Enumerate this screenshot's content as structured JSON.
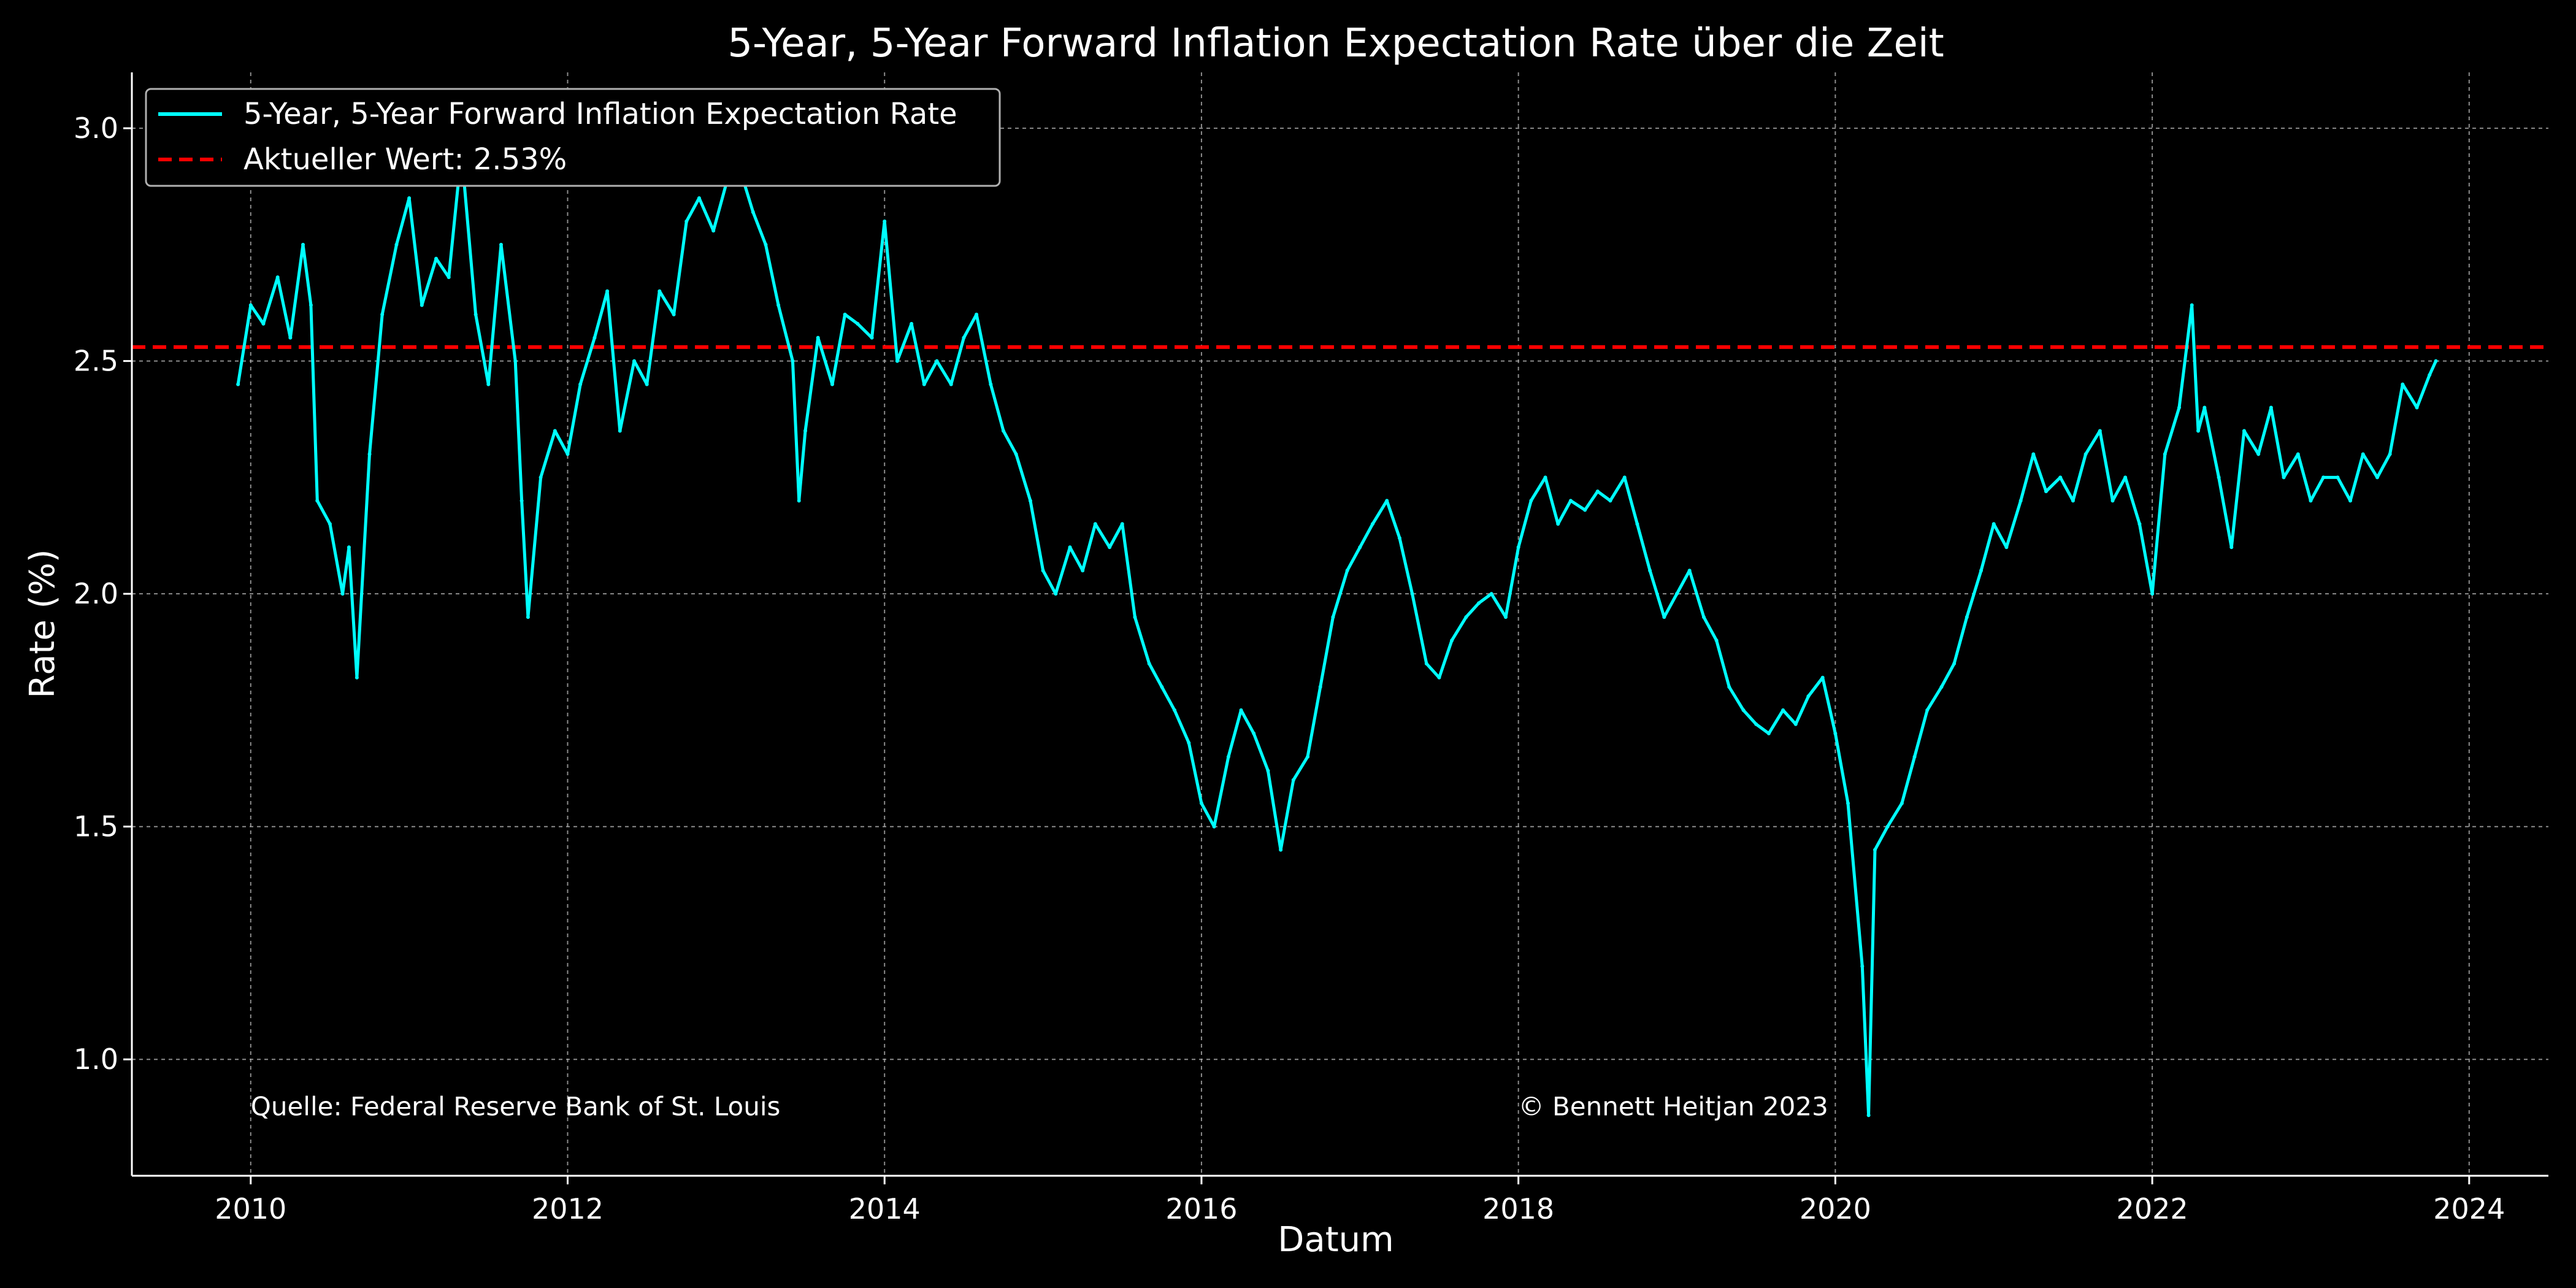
{
  "colors": {
    "background": "#000000",
    "series": "#00ffff",
    "reference": "#ff0000",
    "text": "#ffffff",
    "grid": "#b0b0b0"
  },
  "chart_data": {
    "type": "line",
    "title": "5-Year, 5-Year Forward Inflation Expectation Rate über die Zeit",
    "xlabel": "Datum",
    "ylabel": "Rate (%)",
    "xlim": [
      2009.25,
      2024.5
    ],
    "ylim": [
      0.75,
      3.12
    ],
    "x_ticks": [
      2010,
      2012,
      2014,
      2016,
      2018,
      2020,
      2022,
      2024
    ],
    "x_tick_labels": [
      "2010",
      "2012",
      "2014",
      "2016",
      "2018",
      "2020",
      "2022",
      "2024"
    ],
    "y_ticks": [
      1.0,
      1.5,
      2.0,
      2.5,
      3.0
    ],
    "y_tick_labels": [
      "1.0",
      "1.5",
      "2.0",
      "2.5",
      "3.0"
    ],
    "grid": true,
    "legend_position": "top-left",
    "series": [
      {
        "name": "5-Year, 5-Year Forward Inflation Expectation Rate",
        "color": "#00ffff",
        "style": "solid",
        "x": [
          2009.92,
          2010.0,
          2010.08,
          2010.17,
          2010.25,
          2010.33,
          2010.38,
          2010.42,
          2010.5,
          2010.58,
          2010.62,
          2010.67,
          2010.75,
          2010.83,
          2010.92,
          2011.0,
          2011.08,
          2011.17,
          2011.25,
          2011.33,
          2011.42,
          2011.5,
          2011.58,
          2011.67,
          2011.71,
          2011.75,
          2011.83,
          2011.92,
          2012.0,
          2012.08,
          2012.17,
          2012.25,
          2012.33,
          2012.42,
          2012.5,
          2012.58,
          2012.67,
          2012.75,
          2012.83,
          2012.92,
          2013.0,
          2013.08,
          2013.17,
          2013.25,
          2013.33,
          2013.42,
          2013.46,
          2013.5,
          2013.58,
          2013.67,
          2013.75,
          2013.83,
          2013.92,
          2014.0,
          2014.08,
          2014.17,
          2014.25,
          2014.33,
          2014.42,
          2014.5,
          2014.58,
          2014.67,
          2014.75,
          2014.83,
          2014.92,
          2015.0,
          2015.08,
          2015.17,
          2015.25,
          2015.33,
          2015.42,
          2015.5,
          2015.58,
          2015.67,
          2015.75,
          2015.83,
          2015.92,
          2016.0,
          2016.08,
          2016.17,
          2016.25,
          2016.33,
          2016.42,
          2016.5,
          2016.58,
          2016.67,
          2016.75,
          2016.83,
          2016.92,
          2017.0,
          2017.08,
          2017.17,
          2017.25,
          2017.33,
          2017.42,
          2017.5,
          2017.58,
          2017.67,
          2017.75,
          2017.83,
          2017.92,
          2018.0,
          2018.08,
          2018.17,
          2018.25,
          2018.33,
          2018.42,
          2018.5,
          2018.58,
          2018.67,
          2018.75,
          2018.83,
          2018.92,
          2019.0,
          2019.08,
          2019.17,
          2019.25,
          2019.33,
          2019.42,
          2019.5,
          2019.58,
          2019.67,
          2019.75,
          2019.83,
          2019.92,
          2020.0,
          2020.08,
          2020.17,
          2020.21,
          2020.25,
          2020.33,
          2020.42,
          2020.5,
          2020.58,
          2020.67,
          2020.75,
          2020.83,
          2020.92,
          2021.0,
          2021.08,
          2021.17,
          2021.25,
          2021.33,
          2021.42,
          2021.5,
          2021.58,
          2021.67,
          2021.75,
          2021.83,
          2021.92,
          2022.0,
          2022.08,
          2022.17,
          2022.25,
          2022.29,
          2022.33,
          2022.42,
          2022.5,
          2022.58,
          2022.67,
          2022.75,
          2022.83,
          2022.92,
          2023.0,
          2023.08,
          2023.17,
          2023.25,
          2023.33,
          2023.42,
          2023.5,
          2023.58,
          2023.67,
          2023.75,
          2023.79
        ],
        "values": [
          2.45,
          2.62,
          2.58,
          2.68,
          2.55,
          2.75,
          2.62,
          2.2,
          2.15,
          2.0,
          2.1,
          1.82,
          2.3,
          2.6,
          2.75,
          2.85,
          2.62,
          2.72,
          2.68,
          2.95,
          2.6,
          2.45,
          2.75,
          2.5,
          2.2,
          1.95,
          2.25,
          2.35,
          2.3,
          2.45,
          2.55,
          2.65,
          2.35,
          2.5,
          2.45,
          2.65,
          2.6,
          2.8,
          2.85,
          2.78,
          2.88,
          2.92,
          2.82,
          2.75,
          2.62,
          2.5,
          2.2,
          2.35,
          2.55,
          2.45,
          2.6,
          2.58,
          2.55,
          2.8,
          2.5,
          2.58,
          2.45,
          2.5,
          2.45,
          2.55,
          2.6,
          2.45,
          2.35,
          2.3,
          2.2,
          2.05,
          2.0,
          2.1,
          2.05,
          2.15,
          2.1,
          2.15,
          1.95,
          1.85,
          1.8,
          1.75,
          1.68,
          1.55,
          1.5,
          1.65,
          1.75,
          1.7,
          1.62,
          1.45,
          1.6,
          1.65,
          1.8,
          1.95,
          2.05,
          2.1,
          2.15,
          2.2,
          2.12,
          2.0,
          1.85,
          1.82,
          1.9,
          1.95,
          1.98,
          2.0,
          1.95,
          2.1,
          2.2,
          2.25,
          2.15,
          2.2,
          2.18,
          2.22,
          2.2,
          2.25,
          2.15,
          2.05,
          1.95,
          2.0,
          2.05,
          1.95,
          1.9,
          1.8,
          1.75,
          1.72,
          1.7,
          1.75,
          1.72,
          1.78,
          1.82,
          1.7,
          1.55,
          1.2,
          0.88,
          1.45,
          1.5,
          1.55,
          1.65,
          1.75,
          1.8,
          1.85,
          1.95,
          2.05,
          2.15,
          2.1,
          2.2,
          2.3,
          2.22,
          2.25,
          2.2,
          2.3,
          2.35,
          2.2,
          2.25,
          2.15,
          2.0,
          2.3,
          2.4,
          2.62,
          2.35,
          2.4,
          2.25,
          2.1,
          2.35,
          2.3,
          2.4,
          2.25,
          2.3,
          2.2,
          2.25,
          2.25,
          2.2,
          2.3,
          2.25,
          2.3,
          2.45,
          2.4,
          2.47,
          2.5
        ]
      },
      {
        "name": "Aktueller Wert: 2.53%",
        "color": "#ff0000",
        "style": "dashed",
        "type": "hline",
        "value": 2.53
      }
    ],
    "annotations": [
      {
        "text": "Quelle: Federal Reserve Bank of St. Louis",
        "x": 2010.0,
        "y": 0.88
      },
      {
        "text": "© Bennett Heitjan 2023",
        "x": 2018.0,
        "y": 0.88
      }
    ]
  }
}
